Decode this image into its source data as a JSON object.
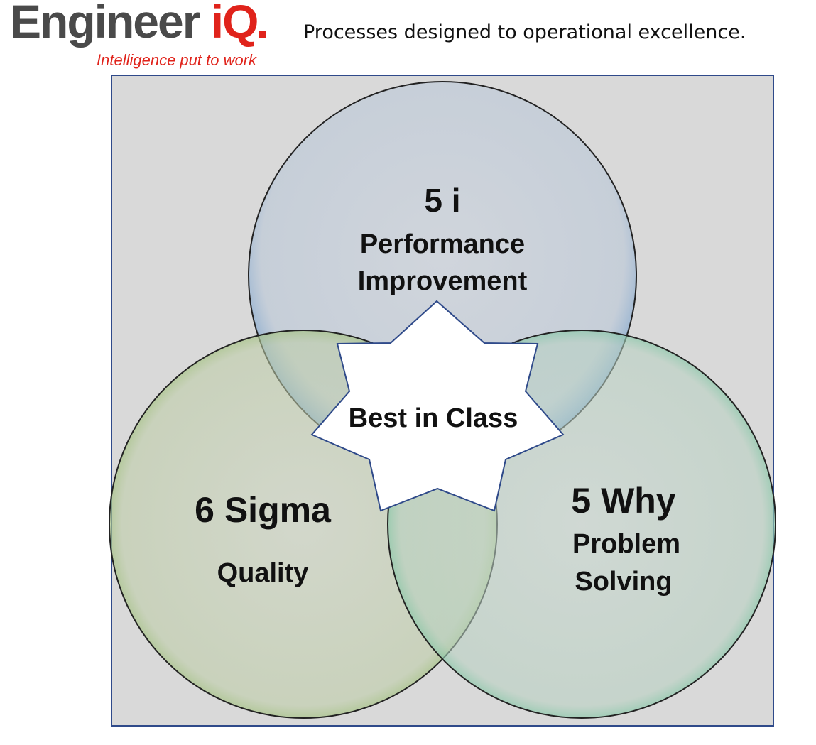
{
  "brand": {
    "name_main": "Engineer ",
    "name_accent": "iQ",
    "tagline": "Intelligence put to work"
  },
  "headline": "Processes designed to operational excellence.",
  "diagram": {
    "circles": [
      {
        "title": "5 i",
        "subtitle_line1": "Performance",
        "subtitle_line2": "Improvement",
        "color": "#7aa6d4"
      },
      {
        "title": "6 Sigma",
        "subtitle_line1": "Quality",
        "subtitle_line2": "",
        "color": "#7fb24d"
      },
      {
        "title": "5 Why",
        "subtitle_line1": "Problem",
        "subtitle_line2": "Solving",
        "color": "#4fc08d"
      }
    ],
    "center_label": "Best in Class",
    "colors": {
      "panel_bg": "#d9d9d9",
      "panel_border": "#2f4a8a",
      "star_fill": "#ffffff",
      "star_stroke": "#2f4a8a"
    }
  }
}
